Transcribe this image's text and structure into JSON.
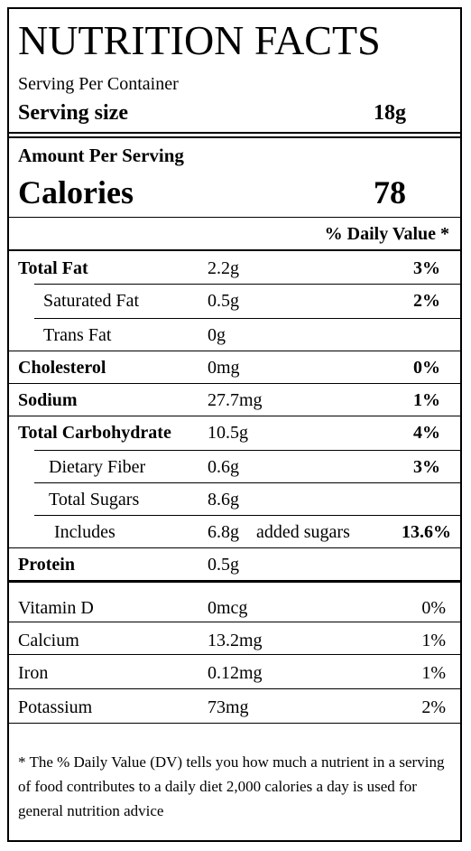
{
  "header": {
    "title": "NUTRITION FACTS",
    "servings_label": "Serving Per Container",
    "serving_size_label": "Serving size",
    "serving_size": "18g"
  },
  "amount": {
    "label": "Amount Per Serving",
    "calories_label": "Calories",
    "calories": 78
  },
  "daily_value_header": "% Daily Value *",
  "nutrients": [
    {
      "name": "Total Fat",
      "amount": "2.2g",
      "dv": "3%"
    },
    {
      "name": "Saturated Fat",
      "amount": "0.5g",
      "dv": "2%"
    },
    {
      "name": "Trans Fat",
      "amount": "0g"
    },
    {
      "name": "Cholesterol",
      "amount": "0mg",
      "dv": "0%"
    },
    {
      "name": "Sodium",
      "amount": "27.7mg",
      "dv": "1%"
    },
    {
      "name": "Total Carbohydrate",
      "amount": "10.5g",
      "dv": "4%"
    },
    {
      "name": "Dietary Fiber",
      "amount": "0.6g",
      "dv": "3%"
    },
    {
      "name": "Total Sugars",
      "amount": "8.6g"
    },
    {
      "name": "Includes",
      "amount": "6.8g",
      "note": "added sugars",
      "dv": "13.6%"
    },
    {
      "name": "Protein",
      "amount": "0.5g"
    }
  ],
  "vitamins": [
    {
      "name": "Vitamin D",
      "amount": "0mcg",
      "dv": "0%"
    },
    {
      "name": "Calcium",
      "amount": "13.2mg",
      "dv": "1%"
    },
    {
      "name": "Iron",
      "amount": "0.12mg",
      "dv": "1%"
    },
    {
      "name": "Potassium",
      "amount": "73mg",
      "dv": "2%"
    }
  ],
  "footnote": "* The % Daily Value (DV) tells you how much a nutrient in a serving of food contributes to a daily diet 2,000 calories a day is used for general nutrition advice"
}
